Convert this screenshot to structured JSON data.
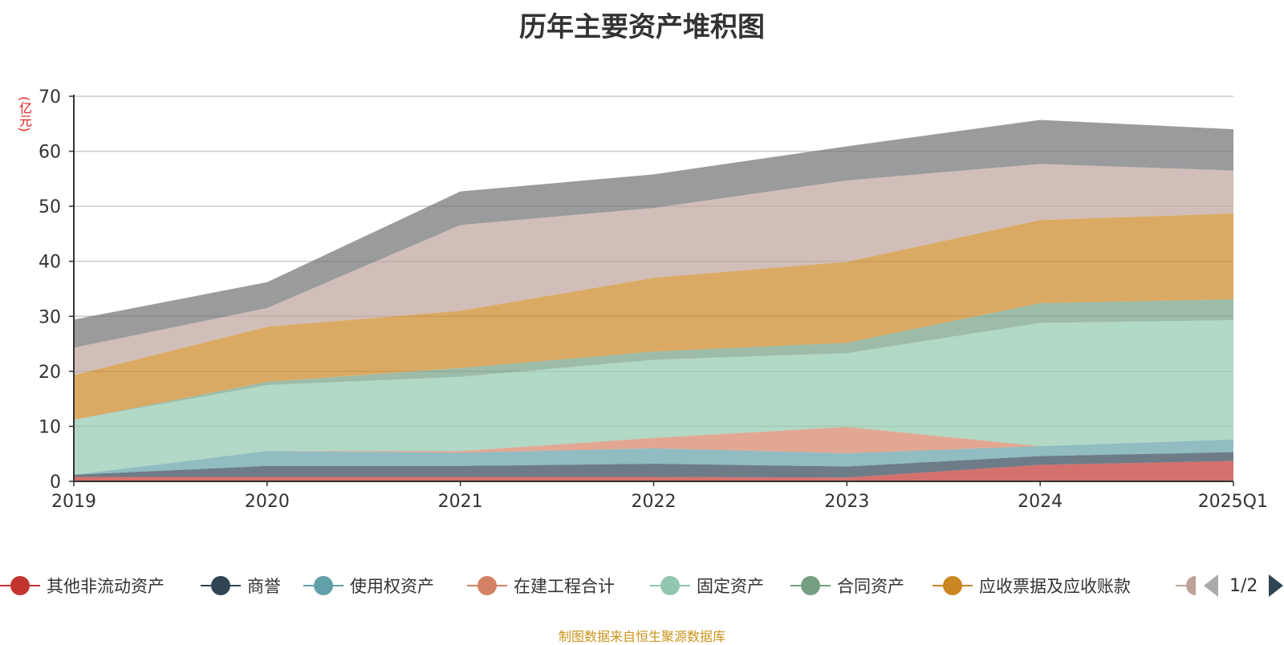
{
  "chart_data": {
    "type": "area",
    "stacked": true,
    "title": "历年主要资产堆积图",
    "ylabel": "(亿元)",
    "xlabel": "",
    "categories": [
      "2019",
      "2020",
      "2021",
      "2022",
      "2023",
      "2024",
      "2025Q1"
    ],
    "ylim": [
      0,
      70
    ],
    "yticks": [
      0,
      10,
      20,
      30,
      40,
      50,
      60,
      70
    ],
    "grid": true,
    "legend_position": "bottom",
    "series": [
      {
        "name": "其他非流动资产",
        "color": "#c23531",
        "values": [
          0.8,
          0.8,
          0.8,
          0.8,
          0.7,
          3.0,
          3.7
        ]
      },
      {
        "name": "商誉",
        "color": "#2f4554",
        "values": [
          0.4,
          2.0,
          2.0,
          2.4,
          2.0,
          1.6,
          1.6
        ]
      },
      {
        "name": "使用权资产",
        "color": "#61a0a8",
        "values": [
          0.0,
          2.7,
          2.4,
          2.8,
          2.4,
          1.8,
          2.3
        ]
      },
      {
        "name": "在建工程合计",
        "color": "#d48265",
        "values": [
          0.0,
          0.0,
          0.3,
          1.9,
          4.8,
          0.0,
          0.0
        ]
      },
      {
        "name": "固定资产",
        "color": "#91c7ae",
        "values": [
          10.0,
          12.0,
          13.5,
          14.2,
          13.4,
          22.4,
          21.7
        ]
      },
      {
        "name": "合同资产",
        "color": "#749f83",
        "values": [
          0.0,
          0.6,
          1.6,
          1.5,
          1.9,
          3.6,
          3.8
        ]
      },
      {
        "name": "应收票据及应收账款",
        "color": "#ca8622",
        "values": [
          8.1,
          10.0,
          10.4,
          13.4,
          14.7,
          15.1,
          15.6
        ]
      },
      {
        "name": "",
        "color": "#bda29a",
        "values": [
          5.0,
          3.4,
          15.6,
          12.7,
          14.8,
          10.2,
          7.8
        ]
      },
      {
        "name": "",
        "color": "#6e7074",
        "values": [
          5.1,
          4.7,
          6.1,
          6.1,
          6.2,
          8.0,
          7.5
        ]
      }
    ]
  },
  "legend": {
    "page_indicator": "1/2"
  },
  "footer": {
    "source": "制图数据来自恒生聚源数据库"
  }
}
